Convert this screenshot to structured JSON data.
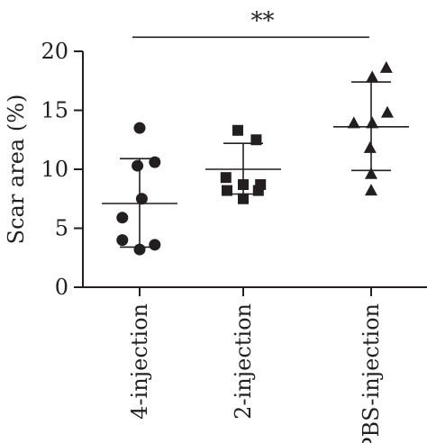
{
  "chart_data": {
    "type": "scatter",
    "xlabel": "",
    "ylabel": "Scar area (%)",
    "ylim": [
      0,
      20
    ],
    "yticks": [
      0,
      5,
      10,
      15,
      20
    ],
    "categories": [
      "4-injection",
      "2-injection",
      "PBS-injection"
    ],
    "series": [
      {
        "marker": "circle",
        "values": [
          13.5,
          10.6,
          10.3,
          7.5,
          5.9,
          4.0,
          3.6,
          3.2
        ],
        "offsets": [
          0,
          0.7,
          -0.1,
          0.1,
          -0.8,
          -0.8,
          0.7,
          0
        ],
        "mean": 7.1,
        "sd_upper": 10.9,
        "sd_lower": 3.4
      },
      {
        "marker": "square",
        "values": [
          13.3,
          12.5,
          9.3,
          8.7,
          8.7,
          8.2,
          8.2,
          7.5
        ],
        "offsets": [
          -0.25,
          0.6,
          -0.8,
          0.8,
          0,
          -0.75,
          0.7,
          0
        ],
        "mean": 10.0,
        "sd_upper": 12.2,
        "sd_lower": 7.9
      },
      {
        "marker": "triangle",
        "values": [
          18.6,
          17.8,
          14.8,
          13.9,
          13.9,
          11.8,
          9.6,
          8.2
        ],
        "offsets": [
          0.7,
          0.05,
          0.75,
          -0.8,
          0.05,
          -0.05,
          0,
          0
        ],
        "mean": 13.6,
        "sd_upper": 17.4,
        "sd_lower": 9.9
      }
    ],
    "annotations": [
      {
        "text": "**",
        "from": "4-injection",
        "to": "PBS-injection",
        "y": 21.2
      }
    ]
  }
}
